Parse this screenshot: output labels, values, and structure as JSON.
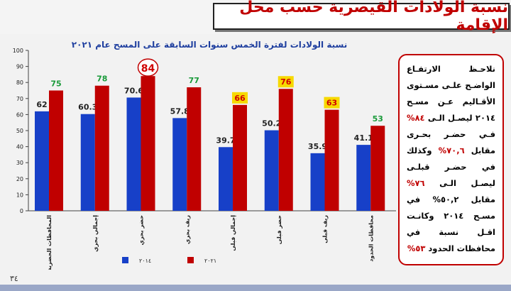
{
  "slide": {
    "title": "نسبة الولادات القيصرية حسب محل الإقامة",
    "page_number": "٣٤"
  },
  "notes": {
    "p1": "نلاحـظ الارتفـاع الواضـح علـى مسـتوى الأقـاليم عـن مسـح ٢٠١٤ ليصـل الـى ",
    "h1": "٨٤%",
    "p2": " فـي حضـر بحـرى مقابل ",
    "h2": "٧٠,٦%",
    "p3": " وكذلك في حضـر قبلـى ليصـل الـى ",
    "h3": "٧٦%",
    "p4": " مقابل ٥٠,٢% في مسـح ٢٠١٤ وكانـت اقـل نسبة في محافظات الحدود ",
    "h4": "٥٣%"
  },
  "colors": {
    "series_2014": "#1740c8",
    "series_2021": "#c00000",
    "label_2014": "#222222",
    "label_2021_default": "#1a9a3a",
    "label_2021_alt": "#d00000",
    "highlight_fill": "#f7d900"
  },
  "chart_data": {
    "type": "bar",
    "title": "نسبة الولادات لفترة الخمس سنوات السابقة على المسح عام ٢٠٢١",
    "categories": [
      "المحافظات الحضرية",
      "إجمالي بحري",
      "حضر بحري",
      "ريف بحري",
      "إجمالي قبلى",
      "حضر قبلى",
      "ريف قبلى",
      "محافظات الحدود"
    ],
    "series": [
      {
        "name": "٢٠١٤",
        "values": [
          62,
          60.3,
          70.6,
          57.8,
          39.7,
          50.2,
          35.9,
          41.1
        ]
      },
      {
        "name": "٢٠٢١",
        "values": [
          75,
          78,
          84,
          77,
          66,
          76,
          63,
          53
        ],
        "label_style": [
          "green",
          "green",
          "circled",
          "green",
          "highlight",
          "highlight",
          "highlight",
          "green"
        ]
      }
    ],
    "ylim": [
      0,
      100
    ],
    "yticks": [
      0,
      10,
      20,
      30,
      40,
      50,
      60,
      70,
      80,
      90,
      100
    ],
    "legend_position": "bottom",
    "grid": false
  }
}
